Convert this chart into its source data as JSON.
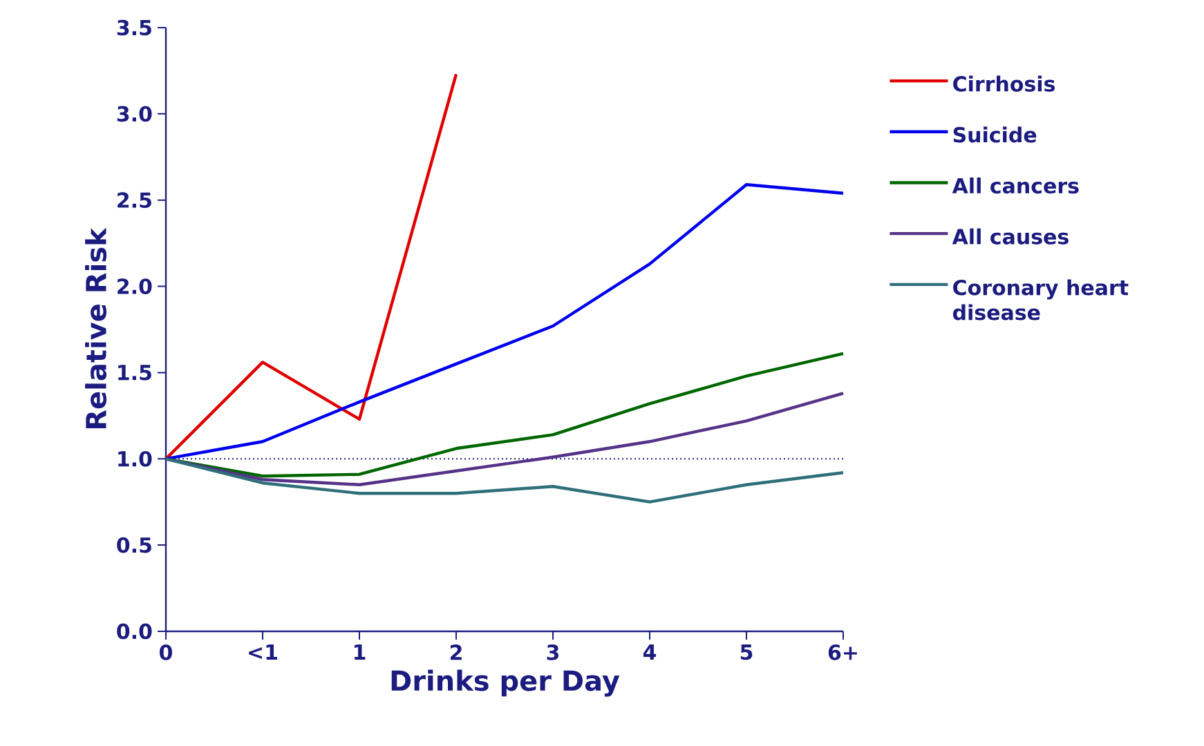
{
  "chart_data": {
    "type": "line",
    "xlabel": "Drinks per Day",
    "ylabel": "Relative Risk",
    "categories": [
      "0",
      "<1",
      "1",
      "2",
      "3",
      "4",
      "5",
      "6+"
    ],
    "ylim": [
      0,
      3.5
    ],
    "yticks": [
      {
        "value": 0,
        "label": "0.0"
      },
      {
        "value": 0.5,
        "label": "0.5"
      },
      {
        "value": 1,
        "label": "1.0"
      },
      {
        "value": 1.5,
        "label": "1.5"
      },
      {
        "value": 2,
        "label": "2.0"
      },
      {
        "value": 2.5,
        "label": "2.5"
      },
      {
        "value": 3,
        "label": "3.0"
      },
      {
        "value": 3.5,
        "label": "3.5"
      }
    ],
    "legend": "right",
    "ref_lines": [
      {
        "axis": "y",
        "value": 1,
        "line_style": "dotted",
        "color": "#1c1c80"
      }
    ],
    "series": [
      {
        "name": "Cirrhosis",
        "color": "#e00000",
        "values": [
          1.0,
          1.56,
          1.23,
          3.23,
          null,
          null,
          null,
          null
        ]
      },
      {
        "name": "Suicide",
        "color": "#0000ee",
        "values": [
          1.0,
          1.1,
          1.33,
          1.55,
          1.77,
          2.13,
          2.59,
          2.54
        ]
      },
      {
        "name": "All cancers",
        "color": "#006600",
        "values": [
          1.0,
          0.9,
          0.91,
          1.06,
          1.14,
          1.32,
          1.48,
          1.61
        ]
      },
      {
        "name": "All causes",
        "color": "#553388",
        "values": [
          1.0,
          0.88,
          0.85,
          0.93,
          1.01,
          1.1,
          1.22,
          1.38
        ]
      },
      {
        "name": "Coronary heart disease",
        "color": "#2f6f7a",
        "values": [
          1.0,
          0.86,
          0.8,
          0.8,
          0.84,
          0.75,
          0.85,
          0.92
        ]
      }
    ]
  }
}
